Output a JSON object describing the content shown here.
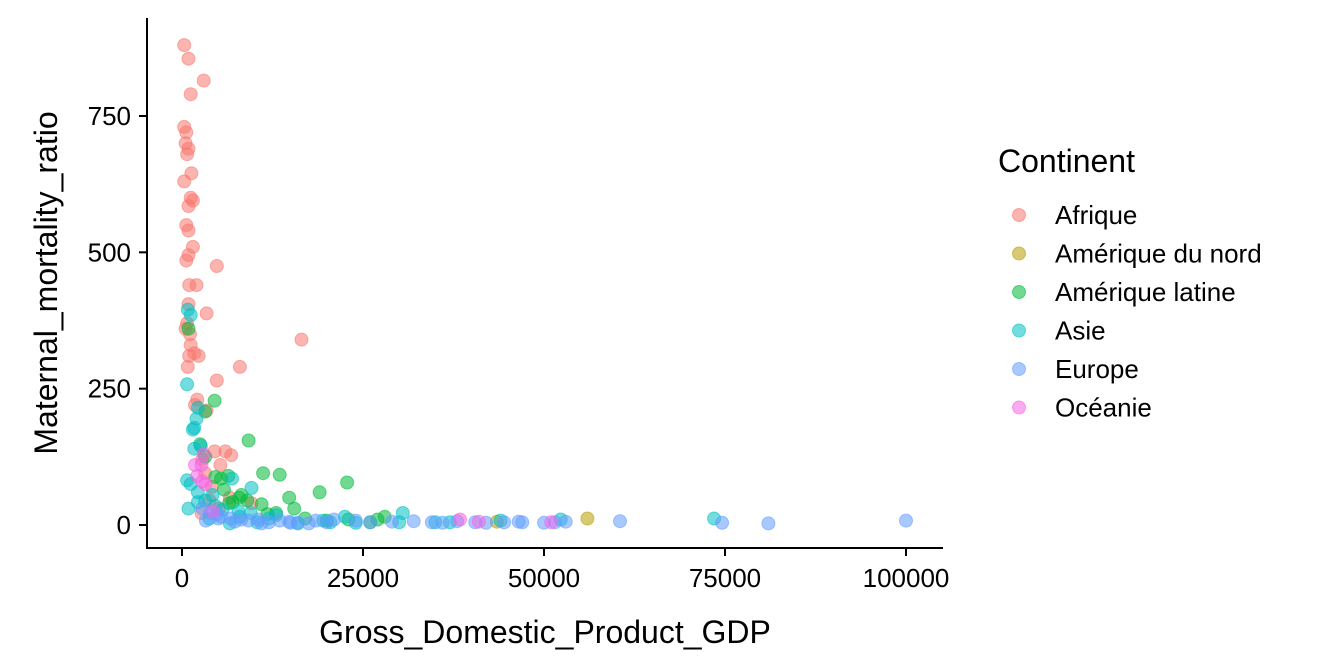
{
  "chart_data": {
    "type": "scatter",
    "xlabel": "Gross_Domestic_Product_GDP",
    "ylabel": "Maternal_mortality_ratio",
    "xlim": [
      -2000,
      104000
    ],
    "ylim": [
      -40,
      900
    ],
    "x_ticks": [
      0,
      25000,
      50000,
      75000,
      100000
    ],
    "x_tick_labels": [
      "0",
      "25000",
      "50000",
      "75000",
      "100000"
    ],
    "y_ticks": [
      0,
      250,
      500,
      750
    ],
    "y_tick_labels": [
      "0",
      "250",
      "500",
      "750"
    ],
    "grid": false,
    "legend": {
      "title": "Continent",
      "position": "right"
    },
    "series": [
      {
        "name": "Afrique",
        "color": "#F8766D",
        "points": [
          [
            300,
            880
          ],
          [
            900,
            855
          ],
          [
            3000,
            815
          ],
          [
            1200,
            790
          ],
          [
            300,
            730
          ],
          [
            600,
            720
          ],
          [
            500,
            700
          ],
          [
            900,
            690
          ],
          [
            700,
            680
          ],
          [
            1300,
            645
          ],
          [
            300,
            630
          ],
          [
            1200,
            600
          ],
          [
            1500,
            595
          ],
          [
            900,
            585
          ],
          [
            600,
            550
          ],
          [
            900,
            540
          ],
          [
            1500,
            510
          ],
          [
            900,
            495
          ],
          [
            600,
            485
          ],
          [
            4800,
            475
          ],
          [
            1000,
            440
          ],
          [
            2000,
            440
          ],
          [
            3400,
            388
          ],
          [
            900,
            405
          ],
          [
            700,
            370
          ],
          [
            500,
            360
          ],
          [
            1100,
            350
          ],
          [
            16500,
            340
          ],
          [
            1200,
            330
          ],
          [
            1700,
            315
          ],
          [
            1000,
            310
          ],
          [
            2300,
            310
          ],
          [
            800,
            290
          ],
          [
            8000,
            290
          ],
          [
            4800,
            265
          ],
          [
            2100,
            230
          ],
          [
            1800,
            220
          ],
          [
            3400,
            210
          ],
          [
            4500,
            135
          ],
          [
            6000,
            135
          ],
          [
            6800,
            128
          ],
          [
            2800,
            120
          ],
          [
            5300,
            110
          ],
          [
            3200,
            95
          ],
          [
            4100,
            70
          ],
          [
            6600,
            50
          ],
          [
            3800,
            45
          ],
          [
            9600,
            40
          ],
          [
            5100,
            30
          ],
          [
            2700,
            22
          ]
        ]
      },
      {
        "name": "Amérique du nord",
        "color": "#B79F00",
        "points": [
          [
            56000,
            12
          ],
          [
            43500,
            6
          ]
        ]
      },
      {
        "name": "Amérique latine",
        "color": "#00BA38",
        "points": [
          [
            900,
            360
          ],
          [
            4500,
            228
          ],
          [
            3200,
            208
          ],
          [
            9200,
            155
          ],
          [
            2500,
            148
          ],
          [
            3200,
            125
          ],
          [
            11200,
            95
          ],
          [
            13500,
            92
          ],
          [
            6400,
            90
          ],
          [
            4600,
            88
          ],
          [
            5400,
            85
          ],
          [
            22800,
            78
          ],
          [
            19000,
            60
          ],
          [
            5800,
            65
          ],
          [
            8200,
            55
          ],
          [
            14800,
            50
          ],
          [
            7900,
            50
          ],
          [
            9000,
            45
          ],
          [
            7000,
            42
          ],
          [
            6500,
            40
          ],
          [
            11000,
            38
          ],
          [
            15500,
            30
          ],
          [
            13000,
            22
          ],
          [
            11800,
            20
          ],
          [
            28000,
            15
          ],
          [
            17000,
            12
          ],
          [
            23000,
            10
          ],
          [
            20000,
            8
          ],
          [
            27000,
            10
          ],
          [
            26000,
            5
          ]
        ]
      },
      {
        "name": "Asie",
        "color": "#00BFC4",
        "points": [
          [
            800,
            395
          ],
          [
            1200,
            385
          ],
          [
            700,
            258
          ],
          [
            2200,
            215
          ],
          [
            2000,
            195
          ],
          [
            1700,
            178
          ],
          [
            1500,
            175
          ],
          [
            2600,
            145
          ],
          [
            1700,
            140
          ],
          [
            6900,
            85
          ],
          [
            700,
            82
          ],
          [
            1200,
            75
          ],
          [
            9600,
            68
          ],
          [
            2200,
            60
          ],
          [
            4200,
            55
          ],
          [
            3200,
            45
          ],
          [
            2200,
            42
          ],
          [
            4600,
            35
          ],
          [
            900,
            30
          ],
          [
            5600,
            28
          ],
          [
            7800,
            25
          ],
          [
            9500,
            22
          ],
          [
            30500,
            22
          ],
          [
            13000,
            18
          ],
          [
            8000,
            15
          ],
          [
            22500,
            15
          ],
          [
            12000,
            12
          ],
          [
            3800,
            12
          ],
          [
            52300,
            10
          ],
          [
            73500,
            12
          ],
          [
            35000,
            5
          ],
          [
            30000,
            5
          ],
          [
            44000,
            8
          ],
          [
            19500,
            8
          ],
          [
            10400,
            5
          ],
          [
            37000,
            5
          ],
          [
            16000,
            3
          ],
          [
            6600,
            3
          ],
          [
            20500,
            5
          ],
          [
            24000,
            4
          ]
        ]
      },
      {
        "name": "Europe",
        "color": "#619CFF",
        "points": [
          [
            2800,
            30
          ],
          [
            3900,
            22
          ],
          [
            4800,
            20
          ],
          [
            5400,
            15
          ],
          [
            6700,
            12
          ],
          [
            8200,
            10
          ],
          [
            9200,
            8
          ],
          [
            10500,
            10
          ],
          [
            12000,
            5
          ],
          [
            13500,
            8
          ],
          [
            14800,
            6
          ],
          [
            16000,
            4
          ],
          [
            17500,
            3
          ],
          [
            18500,
            8
          ],
          [
            21000,
            10
          ],
          [
            26000,
            5
          ],
          [
            32000,
            7
          ],
          [
            34500,
            5
          ],
          [
            38000,
            7
          ],
          [
            40500,
            5
          ],
          [
            42000,
            4
          ],
          [
            44500,
            5
          ],
          [
            46500,
            6
          ],
          [
            50000,
            4
          ],
          [
            51500,
            5
          ],
          [
            53000,
            6
          ],
          [
            60500,
            7
          ],
          [
            74600,
            4
          ],
          [
            81000,
            3
          ],
          [
            100000,
            8
          ],
          [
            20000,
            5
          ],
          [
            29000,
            6
          ],
          [
            24000,
            8
          ],
          [
            7300,
            6
          ],
          [
            11000,
            3
          ],
          [
            15000,
            4
          ],
          [
            5000,
            12
          ],
          [
            3300,
            8
          ],
          [
            36000,
            4
          ],
          [
            47000,
            5
          ]
        ]
      },
      {
        "name": "Océanie",
        "color": "#F564E3",
        "points": [
          [
            3000,
            130
          ],
          [
            2700,
            110
          ],
          [
            1800,
            110
          ],
          [
            2100,
            90
          ],
          [
            2800,
            80
          ],
          [
            3200,
            75
          ],
          [
            4300,
            25
          ],
          [
            38400,
            10
          ],
          [
            51000,
            5
          ],
          [
            41000,
            6
          ]
        ]
      }
    ]
  }
}
